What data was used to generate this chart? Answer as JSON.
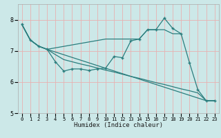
{
  "xlabel": "Humidex (Indice chaleur)",
  "bg_color": "#cce8e8",
  "line_color": "#2a7d7d",
  "grid_color": "#e8b0b0",
  "xlim": [
    -0.5,
    23.5
  ],
  "ylim": [
    5.0,
    8.5
  ],
  "yticks": [
    5,
    6,
    7,
    8
  ],
  "xticks": [
    0,
    1,
    2,
    3,
    4,
    5,
    6,
    7,
    8,
    9,
    10,
    11,
    12,
    13,
    14,
    15,
    16,
    17,
    18,
    19,
    20,
    21,
    22,
    23
  ],
  "series": [
    {
      "x": [
        0,
        1,
        2,
        3,
        4,
        5,
        6,
        7,
        8,
        9,
        10,
        11,
        12,
        13,
        14,
        15,
        16,
        17,
        18,
        19,
        20,
        21,
        22,
        23
      ],
      "y": [
        7.85,
        7.35,
        7.15,
        7.05,
        6.65,
        6.35,
        6.42,
        6.42,
        6.37,
        6.42,
        6.45,
        6.82,
        6.78,
        7.32,
        7.38,
        7.68,
        7.68,
        8.05,
        7.72,
        7.55,
        6.62,
        5.75,
        5.4,
        5.4
      ],
      "marker": true
    },
    {
      "x": [
        0,
        1,
        2,
        3,
        10,
        11,
        12,
        13,
        14,
        15,
        16,
        17,
        18,
        19
      ],
      "y": [
        7.85,
        7.35,
        7.15,
        7.05,
        7.38,
        7.38,
        7.38,
        7.38,
        7.38,
        7.68,
        7.68,
        7.68,
        7.55,
        7.55
      ],
      "marker": false
    },
    {
      "x": [
        0,
        1,
        2,
        3,
        22,
        23
      ],
      "y": [
        7.85,
        7.35,
        7.15,
        7.05,
        5.4,
        5.4
      ],
      "marker": false
    },
    {
      "x": [
        0,
        1,
        2,
        3,
        4,
        5,
        6,
        7,
        8,
        9,
        10,
        11,
        12,
        13,
        14,
        15,
        16,
        17,
        18,
        19,
        20,
        21,
        22,
        23
      ],
      "y": [
        7.85,
        7.35,
        7.15,
        7.05,
        6.88,
        6.72,
        6.65,
        6.58,
        6.52,
        6.45,
        6.38,
        6.32,
        6.25,
        6.18,
        6.12,
        6.05,
        5.98,
        5.92,
        5.85,
        5.78,
        5.72,
        5.65,
        5.4,
        5.4
      ],
      "marker": false
    }
  ]
}
